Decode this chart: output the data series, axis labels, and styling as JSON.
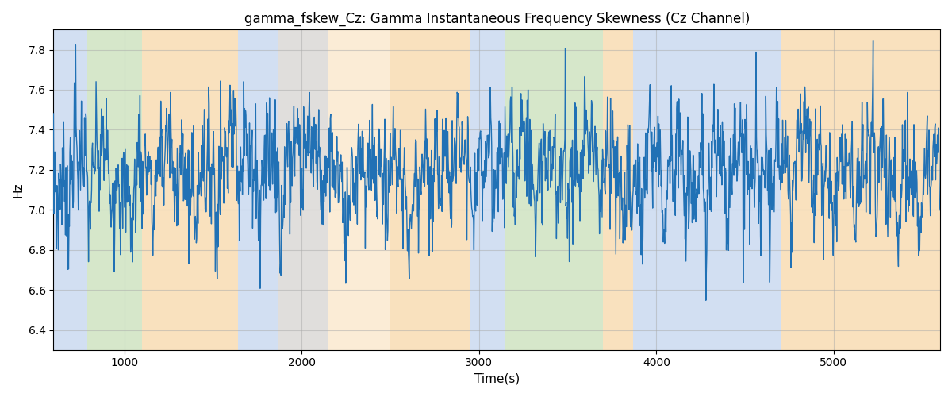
{
  "title": "gamma_fskew_Cz: Gamma Instantaneous Frequency Skewness (Cz Channel)",
  "xlabel": "Time(s)",
  "ylabel": "Hz",
  "ylim": [
    6.3,
    7.9
  ],
  "xlim": [
    600,
    5600
  ],
  "line_color": "#2171b5",
  "line_width": 1.0,
  "bg_color": "#ffffff",
  "grid_color": "#aaaaaa",
  "grid_alpha": 0.5,
  "regions": [
    {
      "start": 600,
      "end": 790,
      "color": "#aec6e8",
      "alpha": 0.55
    },
    {
      "start": 790,
      "end": 1100,
      "color": "#b5d5a0",
      "alpha": 0.55
    },
    {
      "start": 1100,
      "end": 1640,
      "color": "#f5c98a",
      "alpha": 0.55
    },
    {
      "start": 1640,
      "end": 1870,
      "color": "#aec6e8",
      "alpha": 0.55
    },
    {
      "start": 1870,
      "end": 2500,
      "color": "#f5c98a",
      "alpha": 0.35
    },
    {
      "start": 1870,
      "end": 2150,
      "color": "#aec6e8",
      "alpha": 0.35
    },
    {
      "start": 2500,
      "end": 2950,
      "color": "#f5c98a",
      "alpha": 0.55
    },
    {
      "start": 2950,
      "end": 3150,
      "color": "#aec6e8",
      "alpha": 0.55
    },
    {
      "start": 3150,
      "end": 3700,
      "color": "#b5d5a0",
      "alpha": 0.55
    },
    {
      "start": 3700,
      "end": 3870,
      "color": "#f5c98a",
      "alpha": 0.55
    },
    {
      "start": 3870,
      "end": 4700,
      "color": "#aec6e8",
      "alpha": 0.55
    },
    {
      "start": 4700,
      "end": 5600,
      "color": "#f5c98a",
      "alpha": 0.55
    }
  ],
  "title_fontsize": 12,
  "xticks": [
    1000,
    2000,
    3000,
    4000,
    5000
  ],
  "yticks": [
    6.4,
    6.6,
    6.8,
    7.0,
    7.2,
    7.4,
    7.6,
    7.8
  ]
}
